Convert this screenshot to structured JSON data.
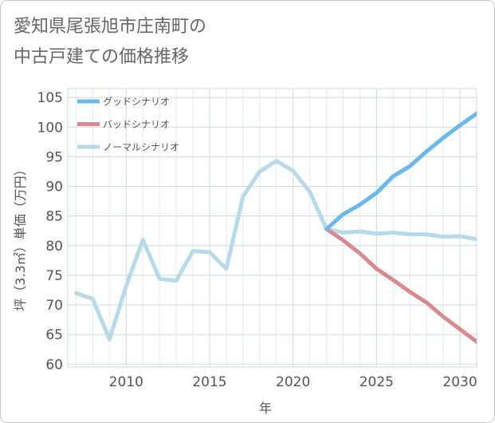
{
  "title": {
    "line1": "愛知県尾張旭市庄南町の",
    "line2": "中古戸建ての価格推移"
  },
  "chart_data": {
    "type": "line",
    "xlabel": "年",
    "ylabel": "坪（3.3㎡）単価（万円）",
    "xlim": [
      2006.5,
      2031
    ],
    "ylim": [
      59.5,
      106.5
    ],
    "xticks": [
      2010,
      2015,
      2020,
      2025,
      2030
    ],
    "yticks": [
      60,
      65,
      70,
      75,
      80,
      85,
      90,
      95,
      100,
      105
    ],
    "grid": true,
    "legend_position": "top-left",
    "series": [
      {
        "name": "グッドシナリオ",
        "color": "#6cb8ea",
        "x": [
          2022,
          2023,
          2024,
          2025,
          2026,
          2027,
          2028,
          2029,
          2030,
          2031
        ],
        "values": [
          82.8,
          85.3,
          86.9,
          88.9,
          91.7,
          93.4,
          95.9,
          98.2,
          100.3,
          102.3
        ]
      },
      {
        "name": "バッドシナリオ",
        "color": "#d98a8e",
        "x": [
          2022,
          2023,
          2024,
          2025,
          2026,
          2027,
          2028,
          2029,
          2030,
          2031
        ],
        "values": [
          82.8,
          80.9,
          78.7,
          76.1,
          74.2,
          72.2,
          70.4,
          68.0,
          65.9,
          63.8
        ]
      },
      {
        "name": "ノーマルシナリオ",
        "color": "#b8d9ea",
        "x": [
          2007,
          2008,
          2009,
          2010,
          2011,
          2012,
          2013,
          2014,
          2015,
          2016,
          2017,
          2018,
          2019,
          2020,
          2021,
          2022,
          2023,
          2024,
          2025,
          2026,
          2027,
          2028,
          2029,
          2030,
          2031
        ],
        "values": [
          72.0,
          71.0,
          64.2,
          73.2,
          81.0,
          74.4,
          74.1,
          79.1,
          78.9,
          76.1,
          88.3,
          92.5,
          94.3,
          92.6,
          89.1,
          82.8,
          82.2,
          82.4,
          82.0,
          82.2,
          81.9,
          81.9,
          81.5,
          81.6,
          81.1
        ]
      }
    ]
  }
}
